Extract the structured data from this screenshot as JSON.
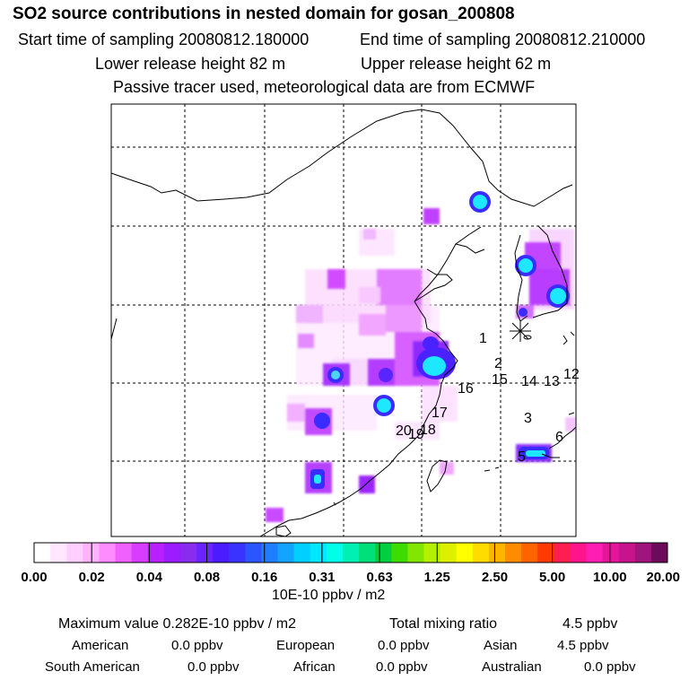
{
  "header": {
    "title": "SO2 source contributions in nested domain for gosan_200808",
    "start_label": "Start time of sampling 20080812.180000",
    "end_label": "End time of sampling 20080812.210000",
    "lower_label": "Lower release height   82 m",
    "upper_label": "Upper release height   62 m",
    "tracer_line": "Passive tracer used, meteorological data are from ECMWF"
  },
  "map": {
    "trajectory_labels": [
      "1",
      "2",
      "15",
      "14",
      "13",
      "12",
      "16",
      "17",
      "3",
      "6",
      "20",
      "19",
      "18",
      "5"
    ],
    "receptor_marker": "asterisk"
  },
  "colorbar": {
    "colors": [
      "#ffffff",
      "#ffe8ff",
      "#ffd0ff",
      "#ffb3ff",
      "#ff8cff",
      "#f060ff",
      "#d83cff",
      "#b820ff",
      "#9b1cff",
      "#8a2bf0",
      "#6a24ff",
      "#4b1cff",
      "#3a33ff",
      "#2a55ff",
      "#1f7dff",
      "#12a4ff",
      "#00cfff",
      "#00e8ff",
      "#00ffe8",
      "#00f0b4",
      "#00e07a",
      "#00d040",
      "#3cdc00",
      "#82e600",
      "#b4f000",
      "#dcf000",
      "#ffff00",
      "#ffdc00",
      "#ffb400",
      "#ff8c00",
      "#ff6400",
      "#ff3c00",
      "#ff1e50",
      "#ff148c",
      "#ff1eb4",
      "#e6149b",
      "#c8148c",
      "#a0147d",
      "#6e0a5a"
    ],
    "tick_labels": [
      "0.00",
      "0.02",
      "0.04",
      "0.08",
      "0.16",
      "0.31",
      "0.63",
      "1.25",
      "2.50",
      "5.00",
      "10.00",
      "20.00"
    ],
    "unit": "10E-10 ppbv / m2"
  },
  "summary": {
    "max_line": "Maximum value  0.282E-10 ppbv / m2",
    "total_label": "Total mixing ratio",
    "total_value": "4.5 ppbv",
    "regions": [
      {
        "name": "American",
        "value": "0.0 ppbv"
      },
      {
        "name": "European",
        "value": "0.0 ppbv"
      },
      {
        "name": "Asian",
        "value": "4.5 ppbv"
      },
      {
        "name": "South American",
        "value": "0.0 ppbv"
      },
      {
        "name": "African",
        "value": "0.0 ppbv"
      },
      {
        "name": "Australian",
        "value": "0.0 ppbv"
      }
    ]
  }
}
